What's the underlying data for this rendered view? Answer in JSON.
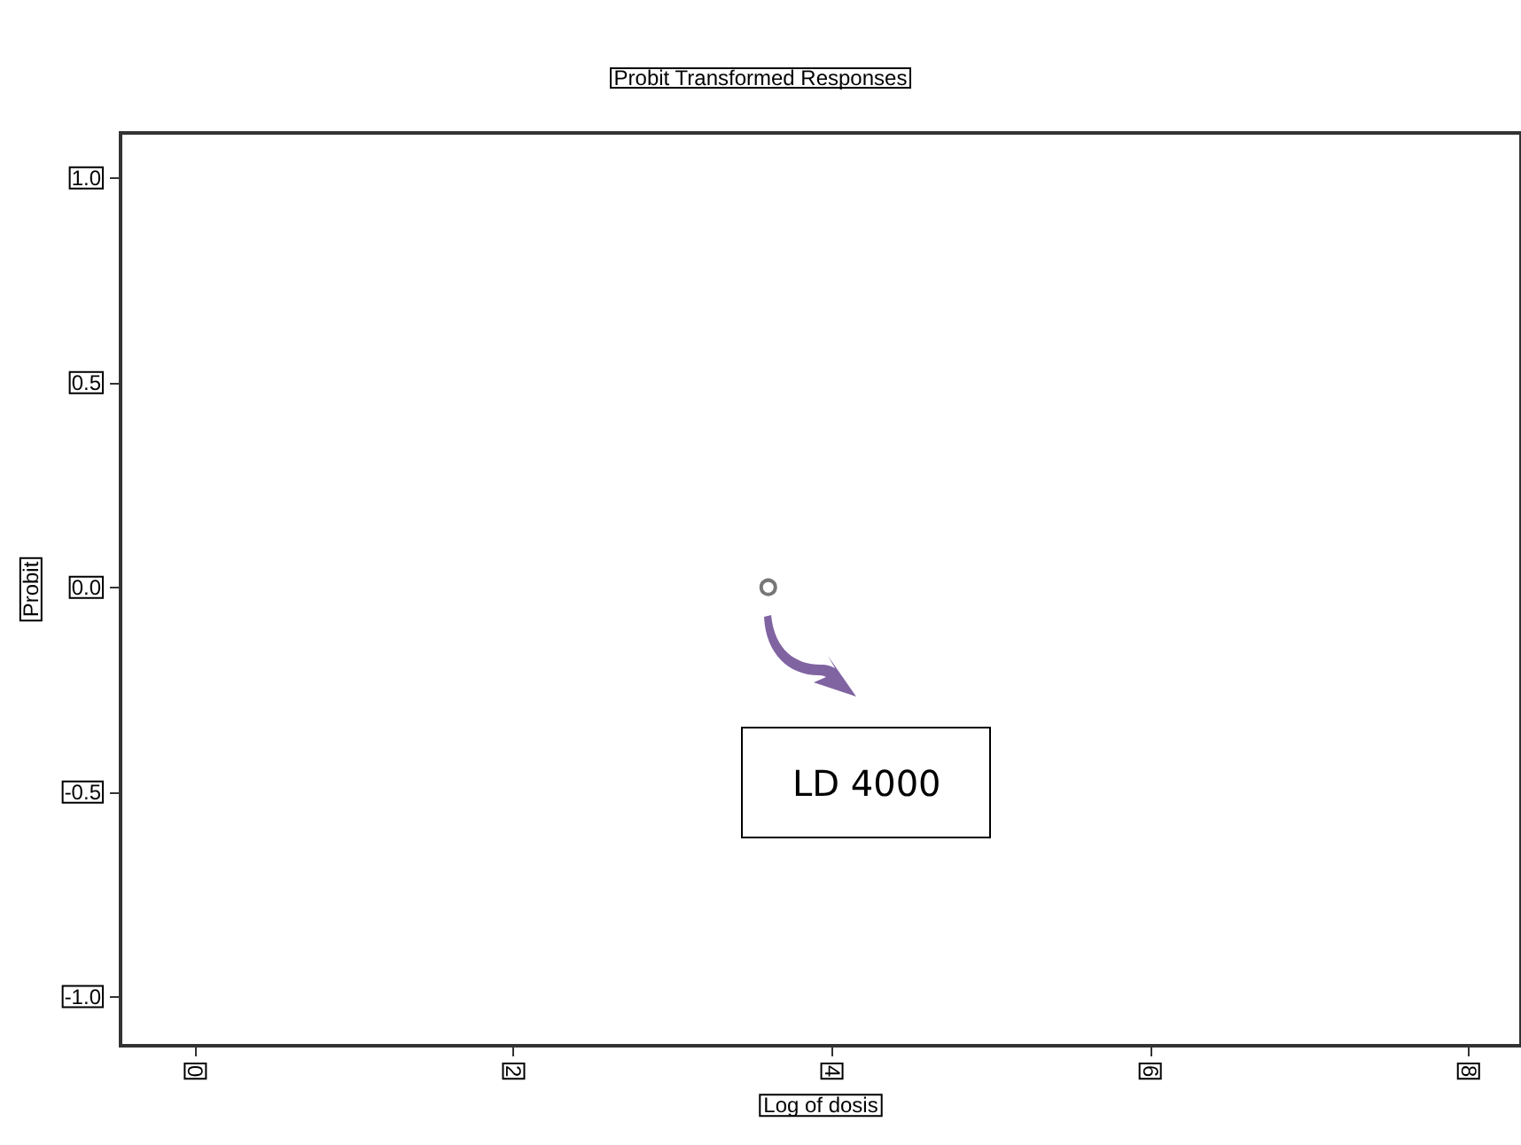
{
  "chart_data": {
    "type": "scatter",
    "title": "Probit Transformed Responses",
    "xlabel": "Log of dosis",
    "ylabel": "Probit",
    "x": [
      3.6
    ],
    "values": [
      0.0
    ],
    "color": "#555555",
    "marker": "circle",
    "xlim": [
      -0.47,
      8.33
    ],
    "xticks": [
      0,
      2,
      4,
      6,
      8
    ],
    "ylim": [
      -1.12,
      1.11
    ],
    "yticks": [
      {
        "value": -1,
        "label": "-1.0"
      },
      {
        "value": -0.5,
        "label": "-0.5"
      },
      {
        "value": 0,
        "label": "0.0"
      },
      {
        "value": 0.5,
        "label": "0.5"
      },
      {
        "value": 1,
        "label": "1.0"
      }
    ],
    "annotations": [
      "LD 4000"
    ],
    "grid": false
  }
}
